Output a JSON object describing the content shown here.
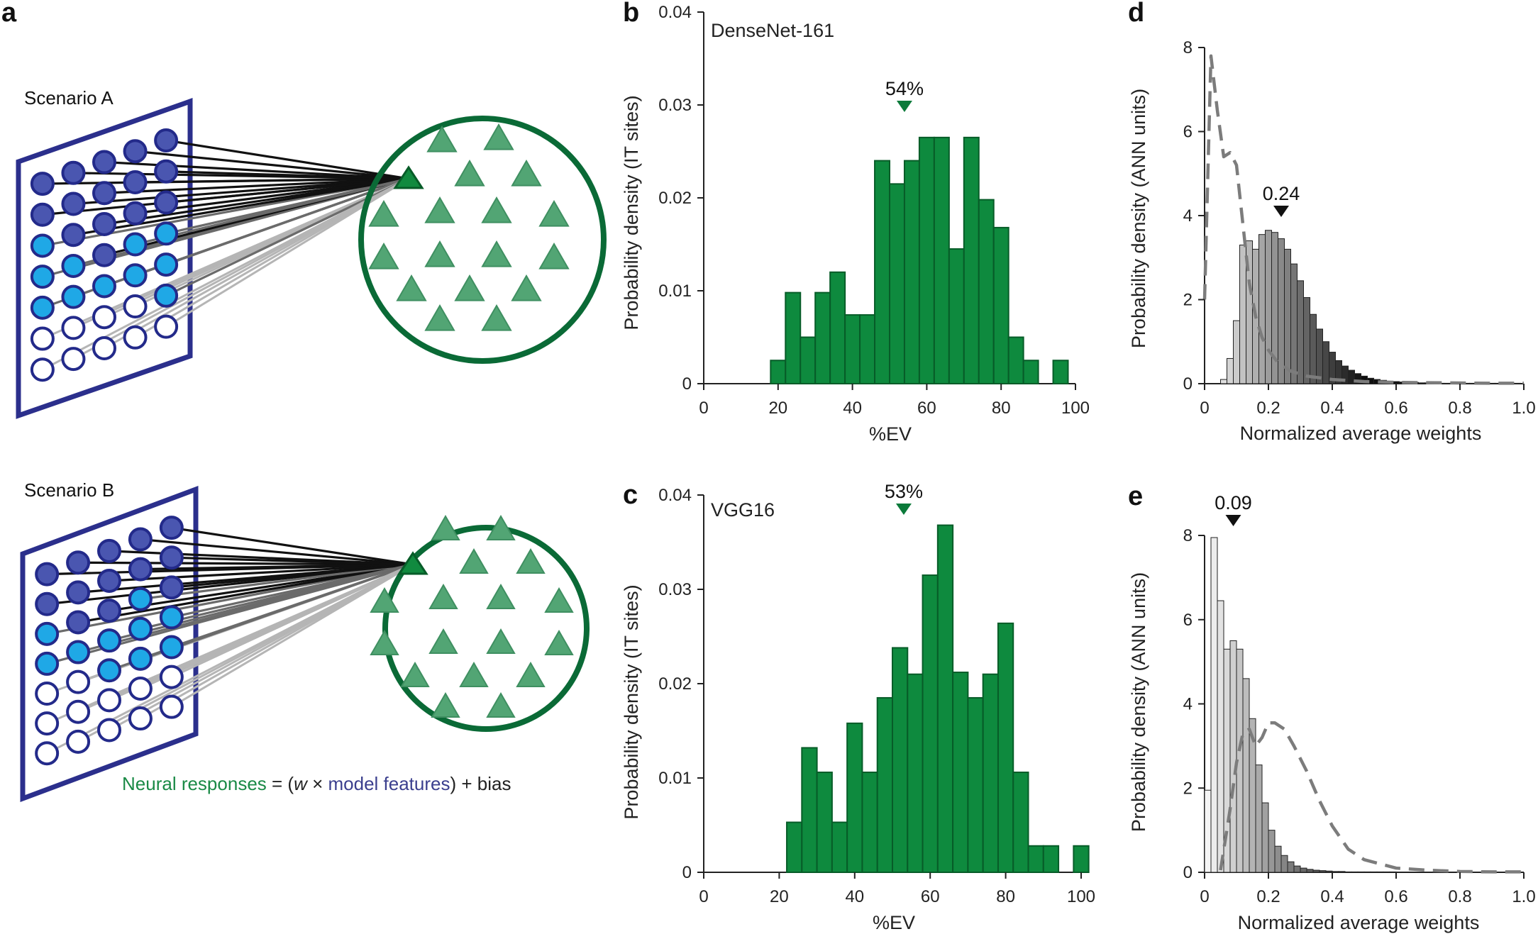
{
  "panel_labels": [
    "a",
    "b",
    "c",
    "d",
    "e"
  ],
  "scenario_a": {
    "label": "Scenario A"
  },
  "scenario_b": {
    "label": "Scenario B"
  },
  "equation": {
    "neural": "Neural responses",
    "eq": " = (",
    "w": "w",
    "times": " × ",
    "model": "model features",
    "close": ") + bias"
  },
  "colors": {
    "green": "#0e8a3e",
    "green_edge": "#075c28",
    "circle": "#0a6a36",
    "triangle": "#52a574",
    "navy": "#2b2f8c",
    "unit_dark": "#4a56b0",
    "unit_light": "#1fa8e6"
  },
  "chart_data": [
    {
      "id": "b",
      "type": "bar",
      "title": "DenseNet-161",
      "xlabel": "%EV",
      "ylabel": "Probability density (IT sites)",
      "xlim": [
        0,
        100
      ],
      "ylim": [
        0,
        0.04
      ],
      "xticks": [
        "0",
        "20",
        "40",
        "60",
        "80",
        "100"
      ],
      "yticks": [
        "0",
        "0.01",
        "0.02",
        "0.03",
        "0.04"
      ],
      "bin_start": 18,
      "bin_width": 4,
      "values": [
        0.0025,
        0.0098,
        0.005,
        0.0098,
        0.012,
        0.0074,
        0.0074,
        0.024,
        0.0215,
        0.024,
        0.0265,
        0.0265,
        0.0145,
        0.0265,
        0.0198,
        0.0168,
        0.005,
        0.0025,
        0,
        0.0025
      ],
      "median_value": 54,
      "median_label": "54%"
    },
    {
      "id": "c",
      "type": "bar",
      "title": "VGG16",
      "xlabel": "%EV",
      "ylabel": "Probability density (IT sites)",
      "xlim": [
        0,
        100
      ],
      "ylim": [
        0,
        0.04
      ],
      "xticks": [
        "0",
        "20",
        "40",
        "60",
        "80",
        "100"
      ],
      "yticks": [
        "0",
        "0.01",
        "0.02",
        "0.03",
        "0.04"
      ],
      "bin_start": 22,
      "bin_width": 4,
      "values": [
        0.0053,
        0.0132,
        0.0106,
        0.0053,
        0.0158,
        0.0106,
        0.0185,
        0.0238,
        0.021,
        0.0315,
        0.0368,
        0.0212,
        0.0185,
        0.021,
        0.0264,
        0.0106,
        0.0028,
        0.0028,
        0,
        0.0028
      ],
      "median_value": 53,
      "median_label": "53%"
    },
    {
      "id": "d",
      "type": "bar",
      "xlabel": "Normalized average weights",
      "ylabel": "Probability density (ANN units)",
      "xlim": [
        0,
        1
      ],
      "ylim": [
        0,
        8
      ],
      "xticks": [
        "0",
        "0.2",
        "0.4",
        "0.6",
        "0.8",
        "1.0"
      ],
      "yticks": [
        "0",
        "2",
        "4",
        "6",
        "8"
      ],
      "bin_start": 0.05,
      "bin_width": 0.02,
      "values": [
        0.1,
        0.6,
        1.5,
        3.3,
        3.4,
        3.2,
        3.55,
        3.65,
        3.6,
        3.45,
        3.2,
        2.85,
        2.45,
        2.05,
        1.65,
        1.3,
        1.0,
        0.75,
        0.55,
        0.42,
        0.32,
        0.24,
        0.18,
        0.13,
        0.1,
        0.08,
        0.06,
        0.05,
        0.04,
        0.03,
        0.03,
        0.02,
        0.02,
        0.02,
        0.01,
        0.01,
        0.01,
        0.01,
        0.01,
        0.01,
        0.01,
        0.01,
        0.01,
        0.01,
        0.01,
        0.01,
        0.01
      ],
      "dashed_series": {
        "x": [
          0.0,
          0.02,
          0.04,
          0.06,
          0.08,
          0.1,
          0.12,
          0.14,
          0.16,
          0.18,
          0.2,
          0.23,
          0.27,
          0.32,
          0.4,
          0.5,
          0.6,
          0.75,
          0.9,
          1.0
        ],
        "y": [
          2.0,
          7.8,
          6.5,
          5.4,
          5.5,
          5.2,
          3.8,
          2.4,
          1.6,
          1.1,
          0.8,
          0.5,
          0.3,
          0.18,
          0.1,
          0.05,
          0.03,
          0.02,
          0.01,
          0.01
        ]
      },
      "median_value": 0.24,
      "median_label": "0.24"
    },
    {
      "id": "e",
      "type": "bar",
      "xlabel": "Normalized average weights",
      "ylabel": "Probability density (ANN units)",
      "xlim": [
        0,
        1
      ],
      "ylim": [
        0,
        8
      ],
      "xticks": [
        "0",
        "0.2",
        "0.4",
        "0.6",
        "0.8",
        "1.0"
      ],
      "yticks": [
        "0",
        "2",
        "4",
        "6",
        "8"
      ],
      "bin_start": 0.0,
      "bin_width": 0.02,
      "values": [
        1.95,
        7.95,
        6.45,
        5.3,
        5.5,
        5.3,
        4.6,
        3.65,
        2.55,
        1.65,
        1.0,
        0.62,
        0.4,
        0.25,
        0.15,
        0.1,
        0.07,
        0.05,
        0.04,
        0.03,
        0.02,
        0.02,
        0.01,
        0.01,
        0.01,
        0.01,
        0.01,
        0.01,
        0.01,
        0.01
      ],
      "dashed_series": {
        "x": [
          0.05,
          0.08,
          0.1,
          0.12,
          0.14,
          0.16,
          0.18,
          0.2,
          0.22,
          0.25,
          0.28,
          0.32,
          0.36,
          0.4,
          0.45,
          0.5,
          0.6,
          0.7,
          0.8,
          0.9,
          1.0
        ],
        "y": [
          0.05,
          1.5,
          2.6,
          3.3,
          3.4,
          3.0,
          3.2,
          3.55,
          3.55,
          3.4,
          3.0,
          2.4,
          1.7,
          1.1,
          0.55,
          0.3,
          0.1,
          0.05,
          0.02,
          0.01,
          0.01
        ]
      },
      "median_value": 0.09,
      "median_label": "0.09"
    }
  ]
}
